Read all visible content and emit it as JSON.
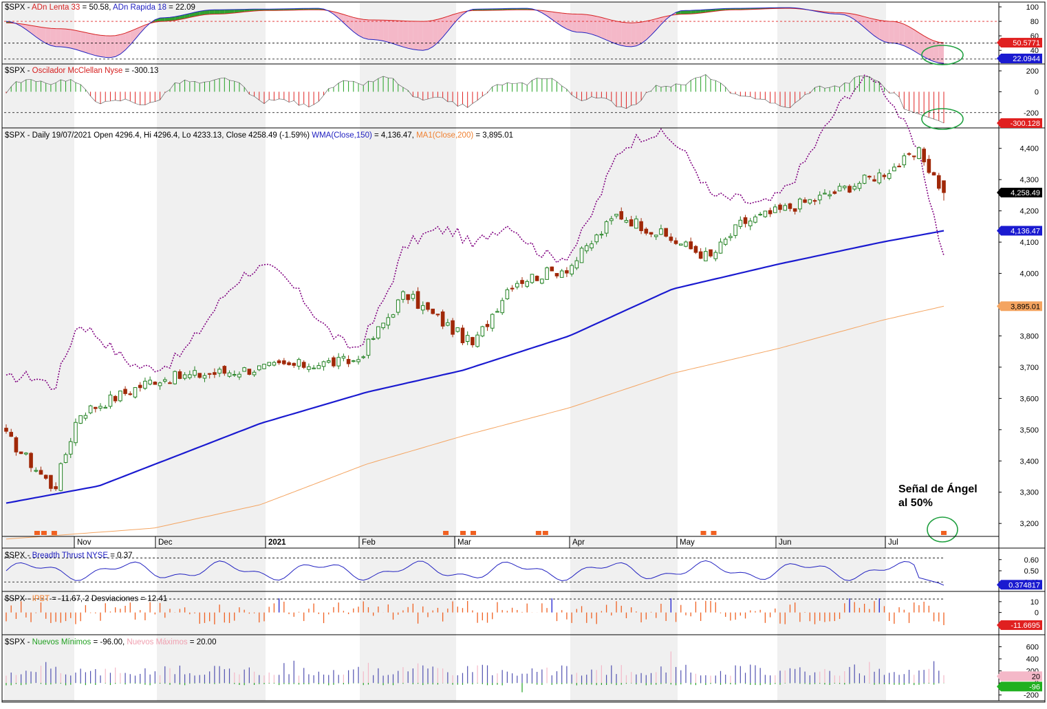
{
  "panels": {
    "adn": {
      "label_parts": [
        {
          "text": "$SPX - ",
          "color": "#000000"
        },
        {
          "text": "ADn Lenta 33",
          "color": "#d62020"
        },
        {
          "text": " = 50.58, ",
          "color": "#000000"
        },
        {
          "text": "ADn Rapida 18",
          "color": "#2020c0"
        },
        {
          "text": " = 22.09",
          "color": "#000000"
        }
      ],
      "ticks": [
        "100",
        "80",
        "60",
        "40"
      ],
      "badges": [
        {
          "text": "50.5771",
          "bg": "#e02020",
          "fg": "#ffffff"
        },
        {
          "text": "22.0944",
          "bg": "#1a1ad0",
          "fg": "#ffffff"
        }
      ]
    },
    "mcclellan": {
      "label_parts": [
        {
          "text": "$SPX - ",
          "color": "#000000"
        },
        {
          "text": "Oscilador McClellan Nyse",
          "color": "#d62020"
        },
        {
          "text": " = -300.13",
          "color": "#000000"
        }
      ],
      "ticks": [
        "200",
        "0",
        "-200"
      ],
      "badges": [
        {
          "text": "-300.128",
          "bg": "#e02020",
          "fg": "#ffffff"
        }
      ]
    },
    "price": {
      "label_parts": [
        {
          "text": "$SPX - Daily 19/07/2021 Open 4296.4, Hi 4296.4, Lo 4233.13, Close 4258.49 (-1.59%) ",
          "color": "#000000"
        },
        {
          "text": "WMA(Close,150)",
          "color": "#2020c0"
        },
        {
          "text": " = 4,136.47, ",
          "color": "#000000"
        },
        {
          "text": "MA1(Close,200)",
          "color": "#f08030"
        },
        {
          "text": " = 3,895.01",
          "color": "#000000"
        }
      ],
      "ticks": [
        "4,400",
        "4,300",
        "4,200",
        "4,100",
        "4,000",
        "3,900",
        "3,800",
        "3,700",
        "3,600",
        "3,500",
        "3,400",
        "3,300",
        "3,200"
      ],
      "badges": [
        {
          "text": "4,258.49",
          "bg": "#000000",
          "fg": "#ffffff"
        },
        {
          "text": "4,136.47",
          "bg": "#1a1ad0",
          "fg": "#ffffff"
        },
        {
          "text": "3,895.01",
          "bg": "#f4a460",
          "fg": "#000000"
        }
      ],
      "annotation_line1": "Señal de Ángel",
      "annotation_line2": "al 50%",
      "months": [
        "Nov",
        "Dec",
        "2021",
        "Feb",
        "Mar",
        "Apr",
        "May",
        "Jun",
        "Jul"
      ]
    },
    "breadth": {
      "label_parts": [
        {
          "text": "$SPX - ",
          "color": "#000000"
        },
        {
          "text": "Breadth Thrust NYSE",
          "color": "#2020c0"
        },
        {
          "text": " = 0.37",
          "color": "#000000"
        }
      ],
      "ticks": [
        "0.60",
        "0.50",
        "0.40"
      ],
      "badges": [
        {
          "text": "0.374817",
          "bg": "#1a1ad0",
          "fg": "#ffffff"
        }
      ]
    },
    "ipbt": {
      "label_parts": [
        {
          "text": "$SPX - ",
          "color": "#000000"
        },
        {
          "text": "IPBT",
          "color": "#f08030"
        },
        {
          "text": " = -11.67,     2 Desviaciones = 12.41",
          "color": "#000000"
        }
      ],
      "ticks": [
        "10",
        "0",
        "-10"
      ],
      "badges": [
        {
          "text": "-11.6695",
          "bg": "#e02020",
          "fg": "#ffffff"
        }
      ]
    },
    "highlow": {
      "label_parts": [
        {
          "text": "$SPX - ",
          "color": "#000000"
        },
        {
          "text": "Nuevos Mínimos",
          "color": "#20a020"
        },
        {
          "text": " = -96.00, ",
          "color": "#000000"
        },
        {
          "text": "Nuevos Máximos",
          "color": "#f0a0b0"
        },
        {
          "text": " = 20.00",
          "color": "#000000"
        }
      ],
      "ticks": [
        "600",
        "400",
        "200",
        "0",
        "-200"
      ],
      "badges": [
        {
          "text": "20",
          "bg": "#f4b8c8",
          "fg": "#000000"
        },
        {
          "text": "-96",
          "bg": "#20b020",
          "fg": "#ffffff"
        }
      ]
    }
  },
  "colors": {
    "up_candle": "#208020",
    "down_candle": "#a02808",
    "wma": "#1a1ad0",
    "ma200": "#f4a460",
    "adn_fill": "#f4b8c8",
    "mcclellan_pos": "#20a020",
    "mcclellan_neg": "#e02020",
    "dotted_price": "#800080",
    "signal": "#f06020",
    "circle": "#20a040"
  },
  "chart_data": [
    {
      "type": "line",
      "title": "$SPX Daily 19/07/2021",
      "x_range": [
        "2020-10-19",
        "2021-07-19"
      ],
      "ohlc_last": {
        "open": 4296.4,
        "high": 4296.4,
        "low": 4233.13,
        "close": 4258.49,
        "change_pct": -1.59
      },
      "ylim": [
        3130,
        4450
      ],
      "series": [
        {
          "name": "Close",
          "x": [
            "2020-10-19",
            "2020-11-02",
            "2020-11-09",
            "2020-12-01",
            "2021-01-04",
            "2021-01-29",
            "2021-02-12",
            "2021-03-04",
            "2021-03-15",
            "2021-04-01",
            "2021-04-15",
            "2021-05-12",
            "2021-05-21",
            "2021-06-01",
            "2021-06-15",
            "2021-07-01",
            "2021-07-12",
            "2021-07-19"
          ],
          "values": [
            3480,
            3310,
            3550,
            3660,
            3700,
            3720,
            3935,
            3770,
            3970,
            4020,
            4190,
            4050,
            4160,
            4200,
            4250,
            4320,
            4385,
            4258
          ]
        },
        {
          "name": "WMA(Close,150)",
          "x": [
            "2020-10-19",
            "2020-11-15",
            "2021-01-01",
            "2021-02-01",
            "2021-03-01",
            "2021-04-01",
            "2021-05-01",
            "2021-06-01",
            "2021-07-01",
            "2021-07-19"
          ],
          "values": [
            3265,
            3320,
            3520,
            3620,
            3690,
            3800,
            3950,
            4030,
            4100,
            4136.47
          ]
        },
        {
          "name": "MA1(Close,200)",
          "x": [
            "2020-10-19",
            "2020-12-01",
            "2021-01-01",
            "2021-02-01",
            "2021-03-01",
            "2021-04-01",
            "2021-05-01",
            "2021-06-01",
            "2021-07-01",
            "2021-07-19"
          ],
          "values": [
            3150,
            3185,
            3260,
            3390,
            3480,
            3570,
            3680,
            3760,
            3850,
            3895.01
          ]
        }
      ],
      "markers": [
        "2020-10-28",
        "2020-10-30",
        "2020-11-02",
        "2021-02-24",
        "2021-03-01",
        "2021-03-04",
        "2021-03-23",
        "2021-03-25",
        "2021-05-10",
        "2021-05-13",
        "2021-07-19"
      ]
    },
    {
      "type": "line",
      "title": "ADn Lenta 33 / ADn Rapida 18",
      "ylim": [
        25,
        100
      ],
      "series": [
        {
          "name": "ADn Lenta 33",
          "values": [
            78,
            70,
            60,
            80,
            90,
            95,
            96,
            82,
            80,
            95,
            96,
            90,
            78,
            90,
            96,
            98,
            92,
            80,
            50.58
          ]
        },
        {
          "name": "ADn Rapida 18",
          "values": [
            80,
            45,
            30,
            85,
            96,
            97,
            98,
            55,
            40,
            97,
            98,
            65,
            45,
            95,
            98,
            99,
            90,
            50,
            22.09
          ]
        }
      ]
    },
    {
      "type": "bar",
      "title": "Oscilador McClellan Nyse",
      "ylim": [
        -320,
        220
      ],
      "last": -300.13
    },
    {
      "type": "line",
      "title": "Breadth Thrust NYSE",
      "ylim": [
        0.34,
        0.66
      ],
      "last": 0.37
    },
    {
      "type": "bar",
      "title": "IPBT",
      "ylim": [
        -18,
        15
      ],
      "last": -11.67,
      "band": 12.41
    },
    {
      "type": "bar",
      "title": "Nuevos Mínimos / Nuevos Máximos",
      "ylim": [
        -250,
        720
      ],
      "series": [
        {
          "name": "Nuevos Mínimos",
          "last": -96
        },
        {
          "name": "Nuevos Máximos",
          "last": 20
        }
      ]
    }
  ]
}
